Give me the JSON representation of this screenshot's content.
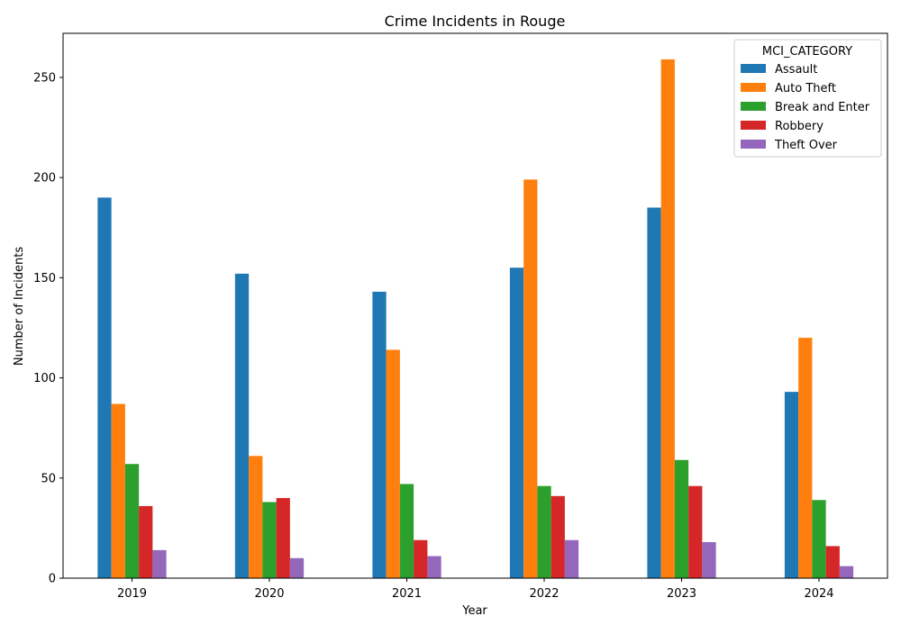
{
  "chart_data": {
    "type": "bar",
    "title": "Crime Incidents in Rouge",
    "xlabel": "Year",
    "ylabel": "Number of Incidents",
    "categories": [
      "2019",
      "2020",
      "2021",
      "2022",
      "2023",
      "2024"
    ],
    "ylim": [
      0,
      272
    ],
    "yticks": [
      0,
      50,
      100,
      150,
      200,
      250
    ],
    "grid": false,
    "legend": {
      "title": "MCI_CATEGORY",
      "placement": "top-right"
    },
    "series": [
      {
        "name": "Assault",
        "color": "#1f77b4",
        "values": [
          190,
          152,
          143,
          155,
          185,
          93
        ]
      },
      {
        "name": "Auto Theft",
        "color": "#ff7f0e",
        "values": [
          87,
          61,
          114,
          199,
          259,
          120
        ]
      },
      {
        "name": "Break and Enter",
        "color": "#2ca02c",
        "values": [
          57,
          38,
          47,
          46,
          59,
          39
        ]
      },
      {
        "name": "Robbery",
        "color": "#d62728",
        "values": [
          36,
          40,
          19,
          41,
          46,
          16
        ]
      },
      {
        "name": "Theft Over",
        "color": "#9467bd",
        "values": [
          14,
          10,
          11,
          19,
          18,
          6
        ]
      }
    ]
  }
}
